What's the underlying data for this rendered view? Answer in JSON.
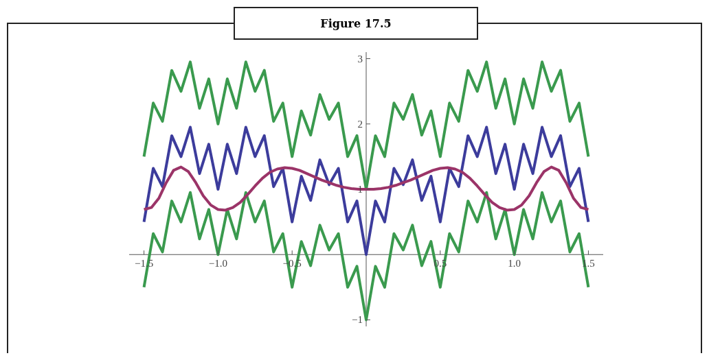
{
  "chart_data": {
    "type": "line",
    "title": "Figure 17.5",
    "line_style": "solid",
    "x": [
      -1.5,
      -1.4375,
      -1.375,
      -1.3125,
      -1.25,
      -1.1875,
      -1.125,
      -1.0625,
      -1,
      -0.9375,
      -0.875,
      -0.8125,
      -0.75,
      -0.6875,
      -0.625,
      -0.5625,
      -0.5,
      -0.4375,
      -0.375,
      -0.3125,
      -0.25,
      -0.1875,
      -0.125,
      -0.0625,
      0,
      0.0625,
      0.125,
      0.1875,
      0.25,
      0.3125,
      0.375,
      0.4375,
      0.5,
      0.5625,
      0.625,
      0.6875,
      0.75,
      0.8125,
      0.875,
      0.9375,
      1,
      1.0625,
      1.125,
      1.1875,
      1.25,
      1.3125,
      1.375,
      1.4375,
      1.5
    ],
    "xlim": [
      -1.6,
      1.6
    ],
    "ylim": [
      -1.1,
      3.1
    ],
    "xticks": [
      {
        "value": -1.5,
        "label": "−1.5"
      },
      {
        "value": -1,
        "label": "−1.0"
      },
      {
        "value": -0.5,
        "label": "−0.5"
      },
      0.5,
      {
        "value": 1,
        "label": "1.0"
      },
      1.5
    ],
    "yticks": [
      {
        "value": -1,
        "label": "−1"
      },
      1,
      2,
      3
    ],
    "series": [
      {
        "color": "#3a9a4e",
        "values": [
          1.5,
          2.32,
          2.04,
          2.82,
          2.5,
          2.95,
          2.24,
          2.69,
          2,
          2.69,
          2.24,
          2.95,
          2.5,
          2.82,
          2.04,
          2.32,
          1.5,
          2.2,
          1.83,
          2.45,
          2.07,
          2.32,
          1.5,
          1.82,
          1,
          1.82,
          1.5,
          2.32,
          2.07,
          2.45,
          1.83,
          2.2,
          1.5,
          2.32,
          2.04,
          2.82,
          2.5,
          2.95,
          2.24,
          2.69,
          2,
          2.69,
          2.24,
          2.95,
          2.5,
          2.82,
          2.04,
          2.32,
          1.5
        ]
      },
      {
        "color": "#3c3c9c",
        "values": [
          0.5,
          1.32,
          1.04,
          1.82,
          1.5,
          1.95,
          1.24,
          1.69,
          1,
          1.69,
          1.24,
          1.95,
          1.5,
          1.82,
          1.04,
          1.32,
          0.5,
          1.2,
          0.83,
          1.45,
          1.07,
          1.32,
          0.5,
          0.82,
          0,
          0.82,
          0.5,
          1.32,
          1.07,
          1.45,
          0.83,
          1.2,
          0.5,
          1.32,
          1.04,
          1.82,
          1.5,
          1.95,
          1.24,
          1.69,
          1,
          1.69,
          1.24,
          1.95,
          1.5,
          1.82,
          1.04,
          1.32,
          0.5
        ]
      },
      {
        "color": "#3a9a4e",
        "values": [
          -0.5,
          0.32,
          0.04,
          0.82,
          0.5,
          0.95,
          0.24,
          0.69,
          0,
          0.69,
          0.24,
          0.95,
          0.5,
          0.82,
          0.04,
          0.32,
          -0.5,
          0.2,
          -0.17,
          0.45,
          0.07,
          0.32,
          -0.5,
          -0.18,
          -1,
          -0.18,
          -0.5,
          0.32,
          0.07,
          0.45,
          -0.17,
          0.2,
          -0.5,
          0.32,
          0.04,
          0.82,
          0.5,
          0.95,
          0.24,
          0.69,
          0,
          0.69,
          0.24,
          0.95,
          0.5,
          0.82,
          0.04,
          0.32,
          -0.5
        ]
      },
      {
        "color": "#9b3468",
        "x": [
          -1.5,
          -1.45,
          -1.4,
          -1.35,
          -1.3,
          -1.25,
          -1.2,
          -1.15,
          -1.1,
          -1.05,
          -1,
          -0.95,
          -0.9,
          -0.85,
          -0.8,
          -0.75,
          -0.7,
          -0.65,
          -0.6,
          -0.55,
          -0.5,
          -0.45,
          -0.4,
          -0.35,
          -0.3,
          -0.25,
          -0.2,
          -0.15,
          -0.1,
          -0.05,
          0,
          0.05,
          0.1,
          0.15,
          0.2,
          0.25,
          0.3,
          0.35,
          0.4,
          0.45,
          0.5,
          0.55,
          0.6,
          0.65,
          0.7,
          0.75,
          0.8,
          0.85,
          0.9,
          0.95,
          1,
          1.05,
          1.1,
          1.15,
          1.2,
          1.25,
          1.3,
          1.35,
          1.4,
          1.45,
          1.5
        ],
        "values": [
          0.69,
          0.72,
          0.86,
          1.1,
          1.29,
          1.34,
          1.27,
          1.1,
          0.9,
          0.76,
          0.69,
          0.68,
          0.72,
          0.8,
          0.92,
          1.05,
          1.17,
          1.26,
          1.31,
          1.33,
          1.32,
          1.29,
          1.24,
          1.19,
          1.14,
          1.1,
          1.06,
          1.03,
          1.01,
          1,
          1,
          1,
          1.01,
          1.03,
          1.06,
          1.1,
          1.14,
          1.19,
          1.24,
          1.29,
          1.32,
          1.33,
          1.31,
          1.26,
          1.17,
          1.05,
          0.92,
          0.8,
          0.72,
          0.68,
          0.69,
          0.76,
          0.9,
          1.1,
          1.27,
          1.34,
          1.29,
          1.1,
          0.86,
          0.72,
          0.69
        ]
      }
    ]
  }
}
